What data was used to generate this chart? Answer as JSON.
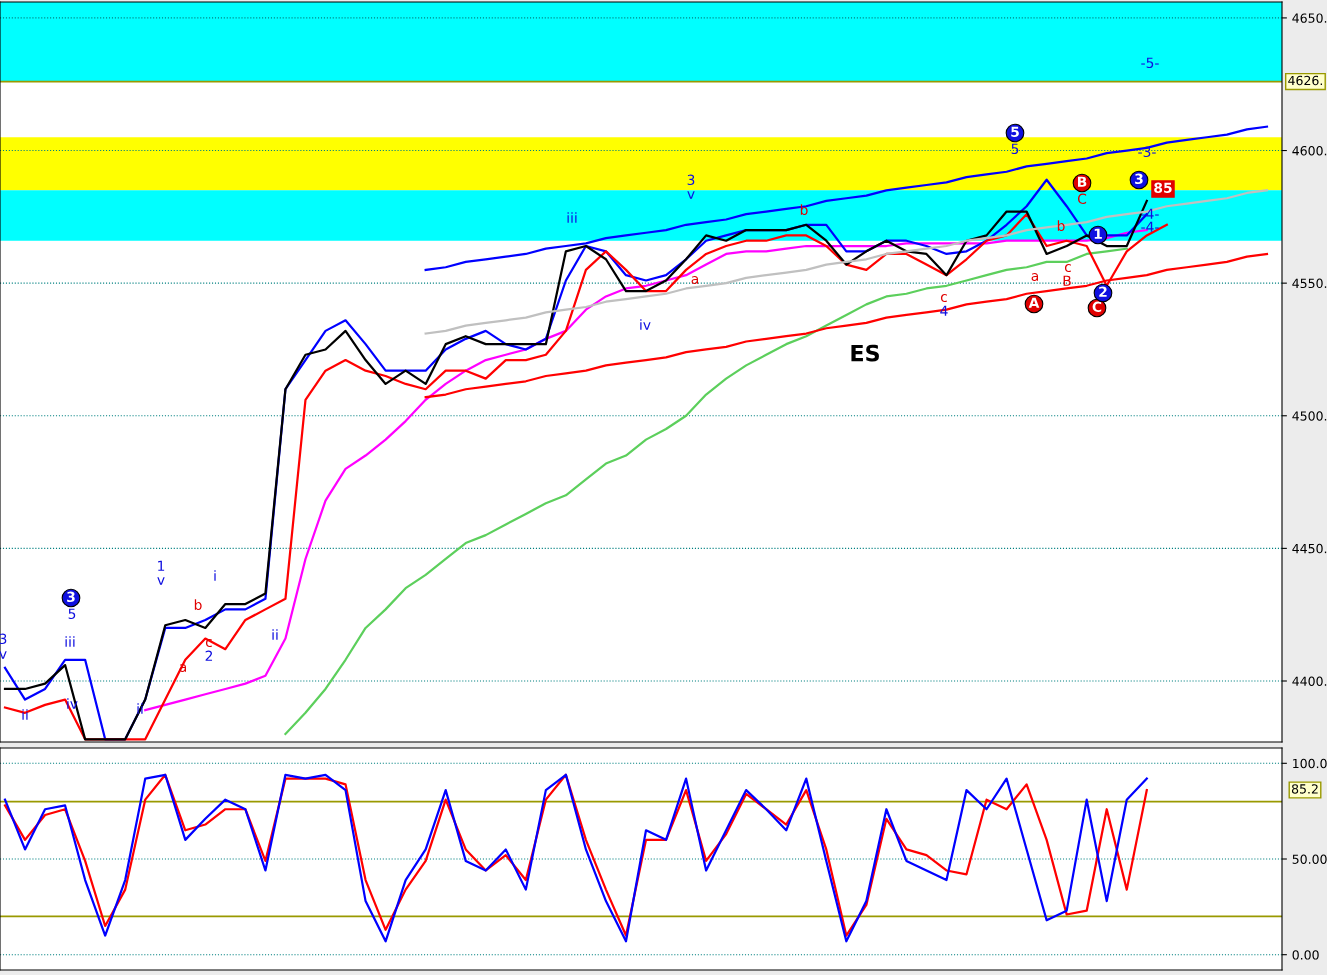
{
  "chart_data": [
    {
      "type": "line",
      "ylim": [
        4377,
        4656
      ],
      "grid": "y",
      "tick_labels": "y",
      "yticks": [
        {
          "value": 4400,
          "label": "4400."
        },
        {
          "value": 4450,
          "label": "4450."
        },
        {
          "value": 4500,
          "label": "4500."
        },
        {
          "value": 4550,
          "label": "4550."
        },
        {
          "value": 4600,
          "label": "4600."
        },
        {
          "value": 4650,
          "label": "4650."
        }
      ],
      "categories": [
        null,
        null,
        null,
        null,
        null,
        null,
        null,
        null,
        null,
        null,
        null,
        null,
        null,
        null,
        null,
        null,
        null,
        null,
        null,
        null,
        null,
        null,
        null,
        null,
        null,
        null,
        null,
        null,
        null,
        null,
        null,
        null,
        null,
        null,
        null,
        null,
        null,
        null,
        null,
        null,
        null,
        null,
        null,
        null,
        null,
        null,
        null,
        null,
        null,
        null,
        null,
        null,
        null,
        null,
        null,
        null,
        null,
        null,
        null,
        null,
        null,
        null,
        null,
        null
      ],
      "bands": [
        {
          "axis": "y",
          "from": 4626,
          "to": 4656,
          "color": "#00ffff"
        },
        {
          "axis": "y",
          "from": 4585,
          "to": 4605,
          "color": "#ffff00"
        },
        {
          "axis": "y",
          "from": 4566,
          "to": 4585,
          "color": "#00ffff"
        }
      ],
      "ref_lines": [
        {
          "axis": "y",
          "value": 4626,
          "label": "4626.",
          "color": "#999900"
        }
      ],
      "series": [
        {
          "color": "#5ccf5c",
          "values": [
            null,
            null,
            null,
            null,
            null,
            null,
            null,
            null,
            null,
            null,
            null,
            null,
            null,
            null,
            4380,
            4388,
            4397,
            4408,
            4420,
            4427,
            4435,
            4440,
            4446,
            4452,
            4455,
            4459,
            4463,
            4467,
            4470,
            4476,
            4482,
            4485,
            4491,
            4495,
            4500,
            4508,
            4514,
            4519,
            4523,
            4527,
            4530,
            4534,
            4538,
            4542,
            4545,
            4546,
            4548,
            4549,
            4551,
            4553,
            4555,
            4556,
            4558,
            4558,
            4561,
            4562,
            4563,
            null,
            null,
            null,
            null,
            null,
            null,
            null
          ]
        },
        {
          "color": "#ff00ff",
          "values": [
            null,
            null,
            null,
            null,
            null,
            null,
            null,
            4389,
            4391,
            4393,
            4395,
            4397,
            4399,
            4402,
            4416,
            4446,
            4468,
            4480,
            4485,
            4491,
            4498,
            4506,
            4512,
            4517,
            4521,
            4523,
            4525,
            4529,
            4532,
            4540,
            4545,
            4548,
            4549,
            4551,
            4553,
            4557,
            4561,
            4562,
            4562,
            4563,
            4564,
            4564,
            4564,
            4564,
            4564,
            4565,
            4565,
            4565,
            4565,
            4565,
            4566,
            4566,
            4566,
            4566,
            4566,
            4567,
            4569,
            4570,
            null,
            null,
            null,
            null,
            null,
            null
          ]
        },
        {
          "color": "#0000ff",
          "values": [
            4405,
            4393,
            4397,
            4408,
            4408,
            4378,
            4378,
            4393,
            4420,
            4420,
            4423,
            4427,
            4427,
            4431,
            4510,
            4521,
            4532,
            4536,
            4527,
            4517,
            4517,
            4517,
            4525,
            4529,
            4532,
            4527,
            4525,
            4529,
            4551,
            4564,
            4562,
            4553,
            4551,
            4553,
            4559,
            4566,
            4568,
            4570,
            4570,
            4570,
            4572,
            4572,
            4562,
            4562,
            4566,
            4566,
            4564,
            4561,
            4562,
            4566,
            4572,
            4579,
            4589,
            4579,
            4568,
            4568,
            4568,
            4576,
            null,
            null,
            null,
            null,
            null,
            null
          ]
        },
        {
          "color": "#ff0000",
          "values": [
            4390,
            4388,
            4391,
            4393,
            4378,
            4378,
            4378,
            4378,
            4393,
            4408,
            4416,
            4412,
            4423,
            4427,
            4431,
            4506,
            4517,
            4521,
            4517,
            4515,
            4512,
            4510,
            4517,
            4517,
            4514,
            4521,
            4521,
            4523,
            4532,
            4555,
            4562,
            4555,
            4547,
            4547,
            4555,
            4561,
            4564,
            4566,
            4566,
            4568,
            4568,
            4564,
            4557,
            4555,
            4561,
            4561,
            4557,
            4553,
            4559,
            4566,
            4568,
            4576,
            4564,
            4566,
            4564,
            4549,
            4562,
            4568,
            4572,
            null,
            null,
            null,
            null,
            null
          ]
        },
        {
          "color": "#000000",
          "values": [
            4397,
            4397,
            4399,
            4406,
            4378,
            4378,
            4378,
            4393,
            4421,
            4423,
            4420,
            4429,
            4429,
            4433,
            4510,
            4523,
            4525,
            4532,
            4521,
            4512,
            4517,
            4512,
            4527,
            4530,
            4527,
            4527,
            4527,
            4527,
            4562,
            4564,
            4559,
            4547,
            4547,
            4551,
            4559,
            4568,
            4566,
            4570,
            4570,
            4570,
            4572,
            4566,
            4557,
            4562,
            4566,
            4562,
            4561,
            4553,
            4566,
            4568,
            4577,
            4577,
            4561,
            4564,
            4568,
            4564,
            4564,
            4581,
            null,
            null,
            null,
            null,
            null,
            null
          ]
        },
        {
          "color": "#0000ff",
          "values": [
            null,
            null,
            null,
            null,
            null,
            null,
            null,
            null,
            null,
            null,
            null,
            null,
            null,
            null,
            null,
            null,
            null,
            null,
            null,
            null,
            null,
            4555,
            4556,
            4558,
            4559,
            4560,
            4561,
            4563,
            4564,
            4565,
            4567,
            4568,
            4569,
            4570,
            4572,
            4573,
            4574,
            4576,
            4577,
            4578,
            4579,
            4581,
            4582,
            4583,
            4585,
            4586,
            4587,
            4588,
            4590,
            4591,
            4592,
            4594,
            4595,
            4596,
            4597,
            4599,
            4600,
            4601,
            4603,
            4604,
            4605,
            4606,
            4608,
            4609
          ]
        },
        {
          "color": "#ff0000",
          "values": [
            null,
            null,
            null,
            null,
            null,
            null,
            null,
            null,
            null,
            null,
            null,
            null,
            null,
            null,
            null,
            null,
            null,
            null,
            null,
            null,
            null,
            4507,
            4508,
            4510,
            4511,
            4512,
            4513,
            4515,
            4516,
            4517,
            4519,
            4520,
            4521,
            4522,
            4524,
            4525,
            4526,
            4528,
            4529,
            4530,
            4531,
            4533,
            4534,
            4535,
            4537,
            4538,
            4539,
            4540,
            4542,
            4543,
            4544,
            4546,
            4547,
            4548,
            4549,
            4551,
            4552,
            4553,
            4555,
            4556,
            4557,
            4558,
            4560,
            4561
          ]
        },
        {
          "color": "#c0c0c0",
          "values": [
            null,
            null,
            null,
            null,
            null,
            null,
            null,
            null,
            null,
            null,
            null,
            null,
            null,
            null,
            null,
            null,
            null,
            null,
            null,
            null,
            null,
            4531,
            4532,
            4534,
            4535,
            4536,
            4537,
            4539,
            4540,
            4541,
            4543,
            4544,
            4545,
            4546,
            4548,
            4549,
            4550,
            4552,
            4553,
            4554,
            4555,
            4557,
            4558,
            4559,
            4561,
            4562,
            4563,
            4564,
            4566,
            4567,
            4568,
            4570,
            4571,
            4572,
            4573,
            4575,
            4576,
            4577,
            4579,
            4580,
            4581,
            4582,
            4584,
            4585
          ]
        }
      ],
      "annotations": [
        "ES",
        "3",
        "v",
        "3",
        "5",
        "iii",
        "iv",
        "ii",
        "ii",
        "1",
        "v",
        "a",
        "b",
        "c",
        "2",
        "i",
        "ii",
        "iii",
        "iv",
        "a",
        "3",
        "v",
        "b",
        "c",
        "4",
        "5",
        "5",
        "a",
        "b",
        "c",
        "B",
        "B",
        "C",
        "A",
        "C",
        "1",
        "2",
        "3",
        "-3-",
        "85",
        "-4-",
        "-4-",
        "-5-"
      ]
    },
    {
      "type": "line",
      "ylim": [
        -8,
        108
      ],
      "grid": "y",
      "tick_labels": "y",
      "yticks": [
        {
          "value": 0,
          "label": "0.00"
        },
        {
          "value": 50,
          "label": "50.00"
        },
        {
          "value": 100,
          "label": "100.0"
        }
      ],
      "categories": [
        null,
        null,
        null,
        null,
        null,
        null,
        null,
        null,
        null,
        null,
        null,
        null,
        null,
        null,
        null,
        null,
        null,
        null,
        null,
        null,
        null,
        null,
        null,
        null,
        null,
        null,
        null,
        null,
        null,
        null,
        null,
        null,
        null,
        null,
        null,
        null,
        null,
        null,
        null,
        null,
        null,
        null,
        null,
        null,
        null,
        null,
        null,
        null,
        null,
        null,
        null,
        null,
        null,
        null,
        null,
        null,
        null,
        null,
        null,
        null,
        null,
        null,
        null,
        null
      ],
      "ref_lines": [
        {
          "axis": "y",
          "value": 80,
          "color": "#999900"
        },
        {
          "axis": "y",
          "value": 20,
          "color": "#999900"
        }
      ],
      "series": [
        {
          "color": "#ff0000",
          "values": [
            78,
            60,
            73,
            76,
            49,
            15,
            34,
            81,
            94,
            65,
            68,
            76,
            76,
            49,
            92,
            92,
            92,
            89,
            39,
            13,
            34,
            49,
            81,
            55,
            44,
            52,
            39,
            81,
            94,
            60,
            34,
            10,
            60,
            60,
            86,
            49,
            63,
            84,
            76,
            68,
            86,
            55,
            10,
            26,
            71,
            55,
            52,
            44,
            42,
            81,
            76,
            89,
            60,
            21,
            23,
            76,
            34,
            86,
            null,
            null,
            null,
            null,
            null,
            null
          ]
        },
        {
          "color": "#0000ff",
          "values": [
            81,
            55,
            76,
            78,
            39,
            10,
            39,
            92,
            94,
            60,
            71,
            81,
            76,
            44,
            94,
            92,
            94,
            86,
            28,
            7,
            39,
            55,
            86,
            49,
            44,
            55,
            34,
            86,
            94,
            55,
            28,
            7,
            65,
            60,
            92,
            44,
            65,
            86,
            76,
            65,
            92,
            49,
            7,
            28,
            76,
            49,
            44,
            39,
            86,
            76,
            92,
            55,
            18,
            23,
            81,
            28,
            81,
            92,
            null,
            null,
            null,
            null,
            null,
            null
          ]
        }
      ],
      "annotations": [
        "85.2"
      ]
    }
  ]
}
